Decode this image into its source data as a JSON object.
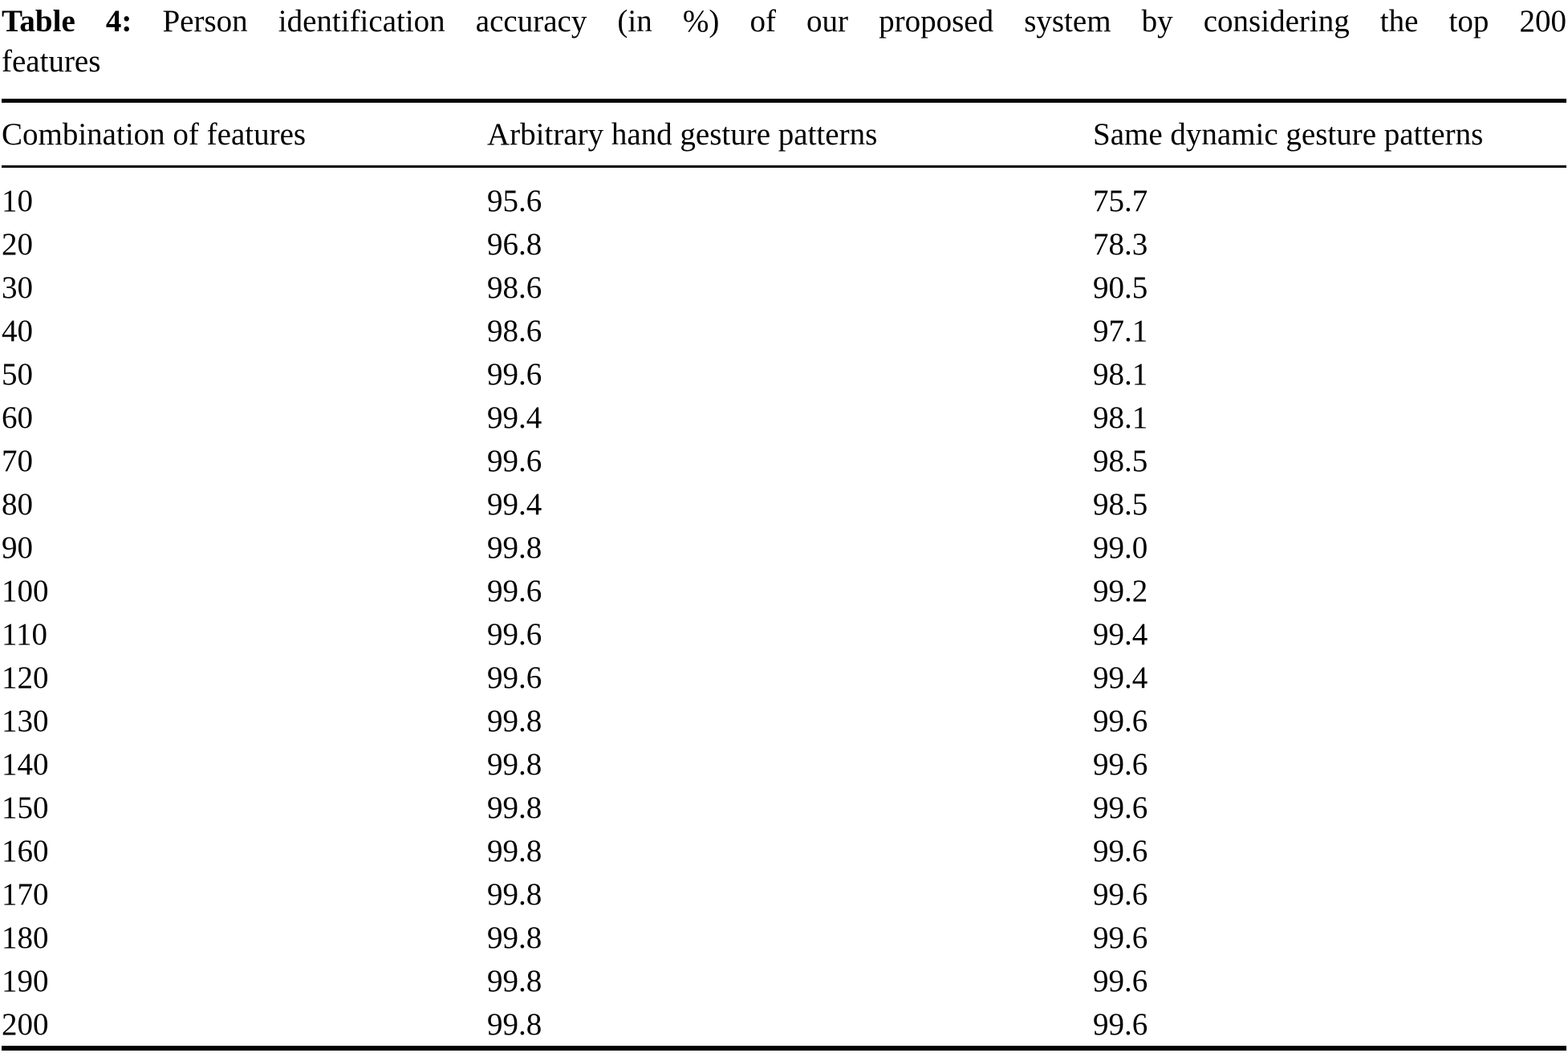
{
  "caption": {
    "label": "Table 4:",
    "line1_rest": "Person identification accuracy (in %) of our proposed system by considering the top 200",
    "line2": "features"
  },
  "table": {
    "columns": [
      "Combination of features",
      "Arbitrary hand gesture patterns",
      "Same dynamic gesture patterns"
    ],
    "rows": [
      [
        "10",
        "95.6",
        "75.7"
      ],
      [
        "20",
        "96.8",
        "78.3"
      ],
      [
        "30",
        "98.6",
        "90.5"
      ],
      [
        "40",
        "98.6",
        "97.1"
      ],
      [
        "50",
        "99.6",
        "98.1"
      ],
      [
        "60",
        "99.4",
        "98.1"
      ],
      [
        "70",
        "99.6",
        "98.5"
      ],
      [
        "80",
        "99.4",
        "98.5"
      ],
      [
        "90",
        "99.8",
        "99.0"
      ],
      [
        "100",
        "99.6",
        "99.2"
      ],
      [
        "110",
        "99.6",
        "99.4"
      ],
      [
        "120",
        "99.6",
        "99.4"
      ],
      [
        "130",
        "99.8",
        "99.6"
      ],
      [
        "140",
        "99.8",
        "99.6"
      ],
      [
        "150",
        "99.8",
        "99.6"
      ],
      [
        "160",
        "99.8",
        "99.6"
      ],
      [
        "170",
        "99.8",
        "99.6"
      ],
      [
        "180",
        "99.8",
        "99.6"
      ],
      [
        "190",
        "99.8",
        "99.6"
      ],
      [
        "200",
        "99.8",
        "99.6"
      ]
    ]
  },
  "colors": {
    "text": "#000000",
    "background": "#ffffff",
    "rule": "#000000"
  }
}
